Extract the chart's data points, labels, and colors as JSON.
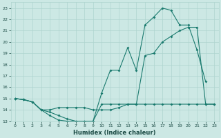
{
  "x": [
    0,
    1,
    2,
    3,
    4,
    5,
    6,
    7,
    8,
    9,
    10,
    11,
    12,
    13,
    14,
    15,
    16,
    17,
    18,
    19,
    20,
    21,
    22,
    23
  ],
  "line_max": [
    15.0,
    14.9,
    14.7,
    14.0,
    13.5,
    13.1,
    13.0,
    13.0,
    13.0,
    13.0,
    15.5,
    17.5,
    17.5,
    19.5,
    17.5,
    21.5,
    22.2,
    23.0,
    22.8,
    21.5,
    21.5,
    19.3,
    16.5,
    null
  ],
  "line_avg": [
    15.0,
    14.9,
    14.7,
    14.0,
    14.0,
    14.2,
    14.2,
    14.2,
    14.2,
    14.0,
    14.0,
    14.0,
    14.2,
    14.5,
    14.5,
    18.8,
    19.0,
    20.0,
    20.5,
    21.0,
    21.3,
    21.3,
    14.5,
    14.5
  ],
  "line_min": [
    15.0,
    14.9,
    14.7,
    14.0,
    13.8,
    13.5,
    13.2,
    13.0,
    13.0,
    13.0,
    14.5,
    14.5,
    14.5,
    14.5,
    14.5,
    14.5,
    14.5,
    14.5,
    14.5,
    14.5,
    14.5,
    14.5,
    14.5,
    14.5
  ],
  "color": "#1a7a6e",
  "bg_color": "#cce8e4",
  "grid_color": "#aed4cf",
  "xlabel": "Humidex (Indice chaleur)",
  "ylim": [
    13,
    23.5
  ],
  "xlim": [
    -0.5,
    23.5
  ],
  "yticks": [
    13,
    14,
    15,
    16,
    17,
    18,
    19,
    20,
    21,
    22,
    23
  ],
  "xticks": [
    0,
    1,
    2,
    3,
    4,
    5,
    6,
    7,
    8,
    9,
    10,
    11,
    12,
    13,
    14,
    15,
    16,
    17,
    18,
    19,
    20,
    21,
    22,
    23
  ]
}
